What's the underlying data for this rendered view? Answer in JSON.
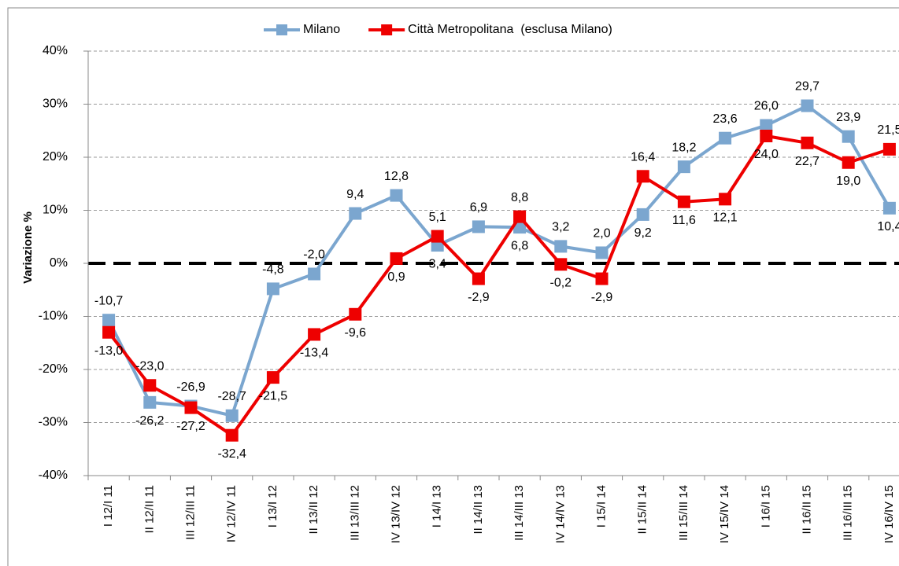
{
  "chart_data": {
    "type": "line",
    "y_label": "Variazione %",
    "categories": [
      "I 12/I 11",
      "II 12/II 11",
      "III 12/III 11",
      "IV 12/IV 11",
      "I 13/I 12",
      "II 13/II 12",
      "III 13/III 12",
      "IV 13/IV 12",
      "I 14/I 13",
      "II 14/II 13",
      "III 14/III 13",
      "IV 14/IV 13",
      "I 15/I 14",
      "II 15/II 14",
      "III 15/III 14",
      "IV 15/IV 14",
      "I 16/I 15",
      "II 16/II 15",
      "III 16/III 15",
      "IV 16/IV 15"
    ],
    "series": [
      {
        "name": "Milano",
        "color": "#7ba6cf",
        "values": [
          -10.7,
          -26.2,
          -26.9,
          -28.7,
          -4.8,
          -2.0,
          9.4,
          12.8,
          3.4,
          6.9,
          6.8,
          3.2,
          2.0,
          9.2,
          18.2,
          23.6,
          26.0,
          29.7,
          23.9,
          10.4
        ],
        "value_labels": [
          "-10,7",
          "-26,2",
          "-26,9",
          "-28,7",
          "-4,8",
          "-2,0",
          "9,4",
          "12,8",
          "3,4",
          "6,9",
          "6,8",
          "3,2",
          "2,0",
          "9,2",
          "18,2",
          "23,6",
          "26,0",
          "29,7",
          "23,9",
          "10,4"
        ]
      },
      {
        "name": "Città Metropolitana  (esclusa Milano)",
        "color": "#ee0000",
        "values": [
          -13.0,
          -23.0,
          -27.2,
          -32.4,
          -21.5,
          -13.4,
          -9.6,
          0.9,
          5.1,
          -2.9,
          8.8,
          -0.2,
          -2.9,
          16.4,
          11.6,
          12.1,
          24.0,
          22.7,
          19.0,
          21.5
        ],
        "value_labels": [
          "-13,0",
          "-23,0",
          "-27,2",
          "-32,4",
          "-21,5",
          "-13,4",
          "-9,6",
          "0,9",
          "5,1",
          "-2,9",
          "8,8",
          "-0,2",
          "-2,9",
          "16,4",
          "11,6",
          "12,1",
          "24,0",
          "22,7",
          "19,0",
          "21,5"
        ]
      }
    ],
    "ylim": [
      -40,
      40
    ],
    "yticks": [
      {
        "value": -40,
        "label": "-40%"
      },
      {
        "value": -30,
        "label": "-30%"
      },
      {
        "value": -20,
        "label": "-20%"
      },
      {
        "value": -10,
        "label": "-10%"
      },
      {
        "value": 0,
        "label": "0%"
      },
      {
        "value": 10,
        "label": "10%"
      },
      {
        "value": 20,
        "label": "20%"
      },
      {
        "value": 30,
        "label": "30%"
      },
      {
        "value": 40,
        "label": "40%"
      }
    ],
    "grid": true,
    "legend": "top"
  }
}
